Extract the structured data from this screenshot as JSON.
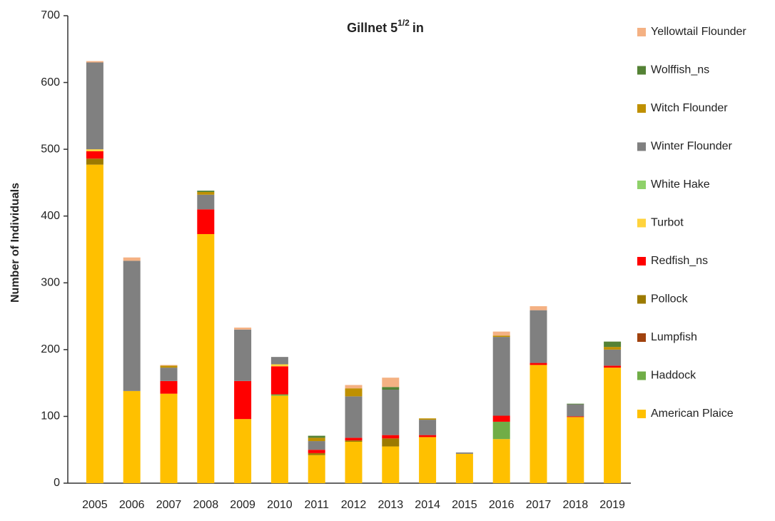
{
  "chart_data": {
    "type": "stacked_bar",
    "title": {
      "text": "Gillnet 5",
      "superscript": "1/2",
      "suffix": "in"
    },
    "y_label": "Number of Individuals",
    "categories": [
      "2005",
      "2006",
      "2007",
      "2008",
      "2009",
      "2010",
      "2011",
      "2012",
      "2013",
      "2014",
      "2015",
      "2016",
      "2017",
      "2018",
      "2019"
    ],
    "ylim": [
      0,
      700
    ],
    "yticks": [
      0,
      100,
      200,
      300,
      400,
      500,
      600,
      700
    ],
    "grid": false,
    "series": [
      {
        "name": "American Plaice",
        "color": "#ffc000",
        "values": [
          477,
          138,
          134,
          373,
          96,
          131,
          42,
          62,
          55,
          69,
          44,
          66,
          177,
          99,
          173
        ]
      },
      {
        "name": "Haddock",
        "color": "#70ad47",
        "values": [
          0,
          0,
          0,
          0,
          0,
          2,
          0,
          0,
          0,
          0,
          0,
          26,
          0,
          0,
          0
        ]
      },
      {
        "name": "Lumpfish",
        "color": "#a0420e",
        "values": [
          0,
          0,
          0,
          0,
          0,
          0,
          0,
          0,
          0,
          0,
          0,
          0,
          0,
          0,
          0
        ]
      },
      {
        "name": "Pollock",
        "color": "#9c7a00",
        "values": [
          9,
          0,
          0,
          0,
          0,
          0,
          3,
          2,
          12,
          0,
          0,
          0,
          0,
          0,
          0
        ]
      },
      {
        "name": "Redfish_ns",
        "color": "#ff0000",
        "values": [
          11,
          0,
          19,
          37,
          57,
          42,
          5,
          4,
          5,
          3,
          0,
          9,
          3,
          1,
          3
        ]
      },
      {
        "name": "Turbot",
        "color": "#ffd33d",
        "values": [
          3,
          0,
          0,
          0,
          0,
          3,
          0,
          0,
          0,
          0,
          0,
          0,
          0,
          0,
          0
        ]
      },
      {
        "name": "White Hake",
        "color": "#8fd16a",
        "values": [
          0,
          0,
          0,
          0,
          0,
          0,
          0,
          0,
          0,
          0,
          0,
          0,
          0,
          0,
          0
        ]
      },
      {
        "name": "Winter Flounder",
        "color": "#808080",
        "values": [
          130,
          195,
          20,
          22,
          77,
          11,
          13,
          62,
          68,
          23,
          2,
          118,
          79,
          18,
          24
        ]
      },
      {
        "name": "Witch Flounder",
        "color": "#bf9000",
        "values": [
          0,
          0,
          3,
          4,
          0,
          0,
          5,
          12,
          0,
          2,
          0,
          2,
          0,
          0,
          4
        ]
      },
      {
        "name": "Wolffish_ns",
        "color": "#548235",
        "values": [
          0,
          0,
          0,
          2,
          0,
          0,
          3,
          0,
          4,
          0,
          0,
          0,
          0,
          1,
          8
        ]
      },
      {
        "name": "Yellowtail Flounder",
        "color": "#f4b183",
        "values": [
          2,
          5,
          1,
          0,
          3,
          0,
          0,
          5,
          14,
          0,
          0,
          6,
          6,
          0,
          0
        ]
      }
    ]
  }
}
